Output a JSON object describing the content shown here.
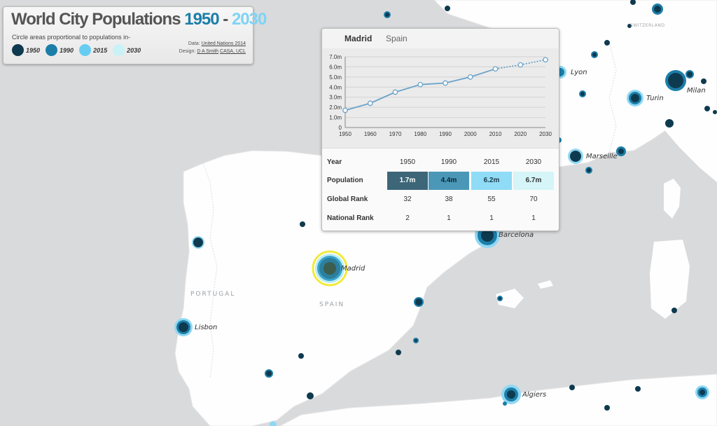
{
  "title": {
    "part1": "World City Populations ",
    "part2": "1950",
    "part3": " - ",
    "part4": "2030"
  },
  "subtitle": "Circle areas proportional to populations in-",
  "legend": [
    {
      "label": "1950",
      "color": "#0e3a4f"
    },
    {
      "label": "1990",
      "color": "#1c7ea8"
    },
    {
      "label": "2015",
      "color": "#67ccf2"
    },
    {
      "label": "2030",
      "color": "#c9f2f7"
    }
  ],
  "credits": {
    "data_prefix": "Data:",
    "data_link": "United Nations 2014",
    "design_prefix": "Design:",
    "design_link1": "D A Smith",
    "design_link2": "CASA, UCL"
  },
  "map": {
    "countries": {
      "portugal": "PORTUGAL",
      "spain": "SPAIN",
      "switzerland": "SWITZERLAND"
    },
    "cities": {
      "madrid": "Madrid",
      "lisbon": "Lisbon",
      "barcelona": "Barcelona",
      "marseille": "Marseille",
      "lyon": "Lyon",
      "turin": "Turin",
      "milan": "Milan",
      "algiers": "Algiers"
    }
  },
  "popup": {
    "city": "Madrid",
    "country": "Spain",
    "table": {
      "year_label": "Year",
      "years": [
        "1950",
        "1990",
        "2015",
        "2030"
      ],
      "population_label": "Population",
      "population": [
        "1.7m",
        "4.4m",
        "6.2m",
        "6.7m"
      ],
      "population_colors": [
        "#3d6678",
        "#4a97b8",
        "#90dbf6",
        "#d5f5f8"
      ],
      "global_rank_label": "Global Rank",
      "global_rank": [
        "32",
        "38",
        "55",
        "70"
      ],
      "national_rank_label": "National Rank",
      "national_rank": [
        "2",
        "1",
        "1",
        "1"
      ]
    }
  },
  "chart_data": {
    "type": "line",
    "x": [
      1950,
      1960,
      1970,
      1980,
      1990,
      2000,
      2010,
      2020,
      2030
    ],
    "values": [
      1.7,
      2.4,
      3.5,
      4.25,
      4.4,
      5.0,
      5.8,
      6.2,
      6.7
    ],
    "projected_from": 2015,
    "ylim": [
      0,
      7
    ],
    "y_ticks": [
      "0",
      "1.0m",
      "2.0m",
      "3.0m",
      "4.0m",
      "5.0m",
      "6.0m",
      "7.0m"
    ],
    "x_ticks": [
      "1950",
      "1960",
      "1970",
      "1980",
      "1990",
      "2000",
      "2010",
      "2020",
      "2030"
    ],
    "line_color": "#6ba3c9"
  }
}
